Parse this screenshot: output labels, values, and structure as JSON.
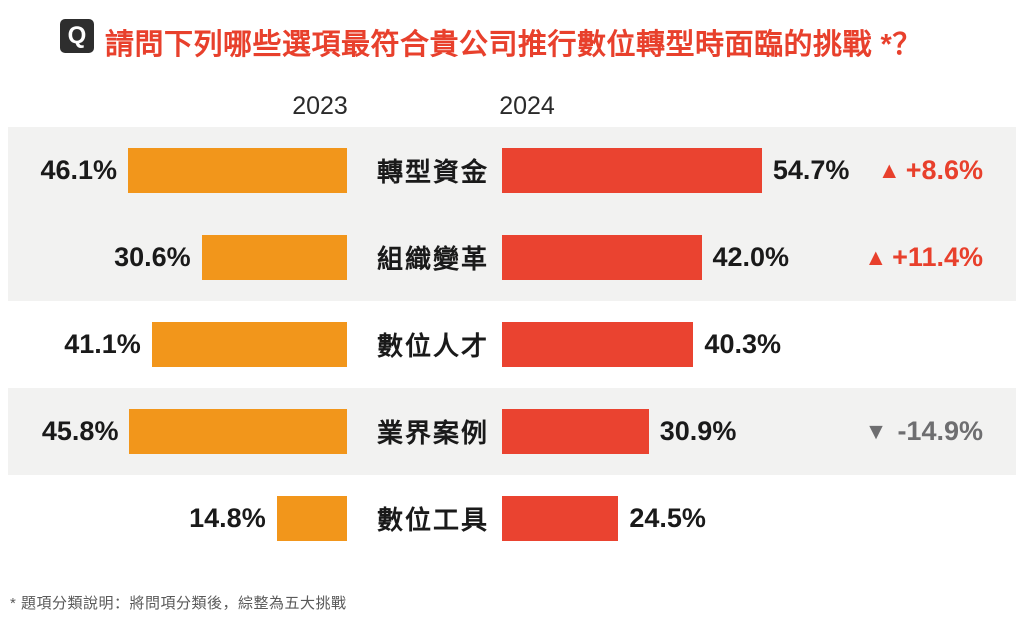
{
  "header": {
    "badge_label": "Q",
    "title": "請問下列哪些選項最符合貴公司推行數位轉型時面臨的挑戰 *？",
    "year_left": "2023",
    "year_right": "2024"
  },
  "footnote": "* 題項分類說明：將問項分類後，綜整為五大挑戰",
  "icons": {
    "up_triangle": "▲",
    "down_triangle": "▼"
  },
  "colors": {
    "title_red": "#e8402c",
    "bar_orange_2023": "#f2961b",
    "bar_red_2024": "#ea4330",
    "change_up_red": "#e8402c",
    "change_down_gray": "#6e6e70",
    "row_shade_gray": "#f2f2f1",
    "text_black": "#1a1a1a",
    "badge_background": "#2e2e2e"
  },
  "chart_data": {
    "type": "bar",
    "orientation": "horizontal_mirrored",
    "title": "請問下列哪些選項最符合貴公司推行數位轉型時面臨的挑戰 *？",
    "categories": [
      "轉型資金",
      "組織變革",
      "數位人才",
      "業界案例",
      "數位工具"
    ],
    "series": [
      {
        "name": "2023",
        "color": "#f2961b",
        "values": [
          46.1,
          30.6,
          41.1,
          45.8,
          14.8
        ]
      },
      {
        "name": "2024",
        "color": "#ea4330",
        "values": [
          54.7,
          42.0,
          40.3,
          30.9,
          24.5
        ]
      }
    ],
    "changes": [
      {
        "direction": "up",
        "label": "+8.6%"
      },
      {
        "direction": "up",
        "label": "+11.4%"
      },
      {
        "direction": "none",
        "label": ""
      },
      {
        "direction": "down",
        "label": "-14.9%"
      },
      {
        "direction": "none",
        "label": ""
      }
    ],
    "value_labels_2023": [
      "46.1%",
      "30.6%",
      "41.1%",
      "45.8%",
      "14.8%"
    ],
    "value_labels_2024": [
      "54.7%",
      "42.0%",
      "40.3%",
      "30.9%",
      "24.5%"
    ],
    "shaded_row_indexes": [
      0,
      1,
      3
    ],
    "axis_hidden": true,
    "legend_position": "top-as-column-headers"
  },
  "rows": [
    {
      "category": "轉型資金",
      "label_2023": "46.1%",
      "value_2023": 46.1,
      "label_2024": "54.7%",
      "value_2024": 54.7,
      "change_label": "+8.6%",
      "change_direction": "up",
      "shaded": true
    },
    {
      "category": "組織變革",
      "label_2023": "30.6%",
      "value_2023": 30.6,
      "label_2024": "42.0%",
      "value_2024": 42.0,
      "change_label": "+11.4%",
      "change_direction": "up",
      "shaded": true
    },
    {
      "category": "數位人才",
      "label_2023": "41.1%",
      "value_2023": 41.1,
      "label_2024": "40.3%",
      "value_2024": 40.3,
      "change_label": "",
      "change_direction": "none",
      "shaded": false
    },
    {
      "category": "業界案例",
      "label_2023": "45.8%",
      "value_2023": 45.8,
      "label_2024": "30.9%",
      "value_2024": 30.9,
      "change_label": "-14.9%",
      "change_direction": "down",
      "shaded": true
    },
    {
      "category": "數位工具",
      "label_2023": "14.8%",
      "value_2023": 14.8,
      "label_2024": "24.5%",
      "value_2024": 24.5,
      "change_label": "",
      "change_direction": "none",
      "shaded": false
    }
  ]
}
